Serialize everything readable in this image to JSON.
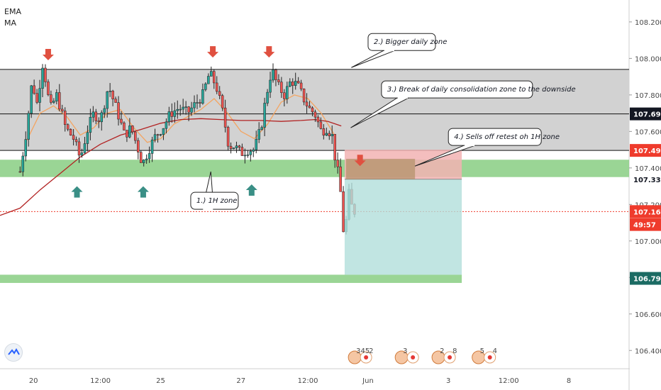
{
  "indicators": [
    "EMA",
    "MA"
  ],
  "colors": {
    "up": "#26a69a",
    "down": "#ef5350",
    "candle": "#222222",
    "zone_gray": "#d0d0d0",
    "zone_green": "#8fd08a",
    "arrow_red": "#e05040",
    "arrow_teal": "#3a8f86",
    "ema": "#f4a460",
    "ma": "#b22222",
    "stop_zone": "#f2b3b3",
    "target_zone": "#b2dfdb",
    "price_tag": "#ef3b2c",
    "black_tag": "#131722",
    "teal_tag": "#1b6b63"
  },
  "chart_data": {
    "type": "line",
    "subtype": "candlestick",
    "title": "",
    "xlabel": "",
    "ylabel": "",
    "ylim": [
      106.3,
      108.32
    ],
    "y_axis_ticks": [
      108.2,
      108.0,
      107.8,
      107.6,
      107.4,
      107.2,
      107.0,
      106.8,
      106.6,
      106.4
    ],
    "x_axis_ticks": [
      {
        "label": "20",
        "x": 2
      },
      {
        "label": "12:00",
        "x": 12
      },
      {
        "label": "25",
        "x": 21
      },
      {
        "label": "27",
        "x": 33
      },
      {
        "label": "12:00",
        "x": 43
      },
      {
        "label": "Jun",
        "x": 52
      },
      {
        "label": "3",
        "x": 64
      },
      {
        "label": "12:00",
        "x": 73
      },
      {
        "label": "8",
        "x": 82
      }
    ],
    "xlim": [
      -3,
      91
    ],
    "price_series": [
      [
        0,
        107.38
      ],
      [
        1,
        107.62
      ],
      [
        1.8,
        107.88
      ],
      [
        2.5,
        107.75
      ],
      [
        3.4,
        107.98
      ],
      [
        4.5,
        107.72
      ],
      [
        5.5,
        107.8
      ],
      [
        6.8,
        107.62
      ],
      [
        8,
        107.56
      ],
      [
        9,
        107.45
      ],
      [
        10,
        107.6
      ],
      [
        11,
        107.7
      ],
      [
        12,
        107.66
      ],
      [
        13.2,
        107.85
      ],
      [
        14.6,
        107.7
      ],
      [
        15.6,
        107.58
      ],
      [
        16.6,
        107.62
      ],
      [
        17.5,
        107.52
      ],
      [
        18.3,
        107.42
      ],
      [
        19.2,
        107.5
      ],
      [
        20.3,
        107.58
      ],
      [
        21.3,
        107.62
      ],
      [
        22.5,
        107.7
      ],
      [
        23.8,
        107.73
      ],
      [
        25,
        107.7
      ],
      [
        26.2,
        107.75
      ],
      [
        27.3,
        107.8
      ],
      [
        28.3,
        107.92
      ],
      [
        29.3,
        107.85
      ],
      [
        30.3,
        107.7
      ],
      [
        31.2,
        107.52
      ],
      [
        32,
        107.52
      ],
      [
        33,
        107.48
      ],
      [
        34,
        107.5
      ],
      [
        35,
        107.5
      ],
      [
        36,
        107.62
      ],
      [
        36.8,
        107.8
      ],
      [
        37.6,
        107.94
      ],
      [
        38.5,
        107.85
      ],
      [
        39.5,
        107.8
      ],
      [
        40.5,
        107.88
      ],
      [
        41.5,
        107.85
      ],
      [
        42.5,
        107.77
      ],
      [
        43.3,
        107.72
      ],
      [
        44,
        107.7
      ],
      [
        45,
        107.6
      ],
      [
        45.8,
        107.62
      ],
      [
        46.6,
        107.58
      ],
      [
        47.2,
        107.42
      ],
      [
        47.8,
        107.32
      ],
      [
        48.2,
        107.05
      ],
      [
        48.8,
        107.12
      ],
      [
        49.2,
        107.28
      ],
      [
        49.6,
        107.18
      ],
      [
        50,
        107.16
      ]
    ],
    "candle_prices": {
      "low": 107.33,
      "high": 107.96
    },
    "ema_series": [
      [
        1,
        107.55
      ],
      [
        3,
        107.7
      ],
      [
        5,
        107.74
      ],
      [
        7,
        107.68
      ],
      [
        9,
        107.58
      ],
      [
        11,
        107.62
      ],
      [
        13,
        107.7
      ],
      [
        15,
        107.72
      ],
      [
        17,
        107.62
      ],
      [
        19,
        107.54
      ],
      [
        21,
        107.56
      ],
      [
        23,
        107.64
      ],
      [
        25,
        107.68
      ],
      [
        27,
        107.72
      ],
      [
        29,
        107.78
      ],
      [
        31,
        107.7
      ],
      [
        33,
        107.6
      ],
      [
        35,
        107.56
      ],
      [
        37,
        107.64
      ],
      [
        39,
        107.76
      ],
      [
        41,
        107.8
      ],
      [
        43,
        107.78
      ],
      [
        45,
        107.7
      ],
      [
        47,
        107.58
      ]
    ],
    "ma_series": [
      [
        -3,
        107.14
      ],
      [
        0,
        107.18
      ],
      [
        3,
        107.28
      ],
      [
        6,
        107.37
      ],
      [
        9,
        107.46
      ],
      [
        12,
        107.53
      ],
      [
        15,
        107.58
      ],
      [
        18,
        107.61
      ],
      [
        21,
        107.645
      ],
      [
        24,
        107.665
      ],
      [
        27,
        107.67
      ],
      [
        30,
        107.665
      ],
      [
        33,
        107.66
      ],
      [
        36,
        107.66
      ],
      [
        39,
        107.655
      ],
      [
        42,
        107.66
      ],
      [
        44,
        107.665
      ],
      [
        46,
        107.655
      ],
      [
        48,
        107.63
      ]
    ],
    "zones": [
      {
        "name": "daily-zone",
        "y_low": 107.496,
        "y_high": 107.94,
        "x_from": -3,
        "x_to": 91
      },
      {
        "name": "1h-zone",
        "y_low": 107.35,
        "y_high": 107.445,
        "x_from": -3,
        "x_to": 91
      },
      {
        "name": "target-zone",
        "y_low": 106.77,
        "y_high": 106.815,
        "x_from": -3,
        "x_to": 66
      }
    ],
    "hlines": [
      107.94,
      107.696,
      107.496
    ],
    "position": {
      "entry": 107.338,
      "stop": 107.5,
      "target": 106.815,
      "x_from": 48.5,
      "x_to": 66
    },
    "current_price": 107.161,
    "price_tags": [
      {
        "value": "107.696",
        "price": 107.696,
        "style": "black"
      },
      {
        "value": "107.496",
        "price": 107.496,
        "style": "red"
      },
      {
        "value": "107.338",
        "price": 107.338,
        "style": "plain"
      },
      {
        "value": "107.161",
        "price": 107.161,
        "style": "red"
      },
      {
        "value": "49:57",
        "price": 107.09,
        "style": "red"
      },
      {
        "value": "106.795",
        "price": 106.795,
        "style": "teal"
      }
    ],
    "down_arrows": [
      [
        4.2,
        107.99
      ],
      [
        28.8,
        108.005
      ],
      [
        37.2,
        108.005
      ],
      [
        50.8,
        107.41
      ]
    ],
    "up_arrows": [
      [
        8.5,
        107.3
      ],
      [
        18.4,
        107.3
      ],
      [
        34.6,
        107.31
      ]
    ],
    "annotations": [
      {
        "text": "2.) Bigger daily zone",
        "box": [
          52,
          108.09
        ],
        "w": 95,
        "tip": [
          49.5,
          107.95
        ]
      },
      {
        "text": "3.) Break of daily consolidation zone to the downside",
        "box": [
          54,
          107.83
        ],
        "w": 213,
        "tip": [
          49.4,
          107.62
        ]
      },
      {
        "text": "4.) Sells off retest oh 1H zone",
        "box": [
          64,
          107.57
        ],
        "w": 131,
        "tip": [
          59,
          107.41
        ]
      },
      {
        "text": "1.) 1H zone",
        "box": [
          25.5,
          107.22
        ],
        "w": 67,
        "tip": [
          28.5,
          107.38
        ]
      }
    ],
    "events": [
      {
        "x": 50,
        "badge": "345",
        "badge2": "2"
      },
      {
        "x": 57,
        "badge": "3",
        "badge2": ""
      },
      {
        "x": 62.5,
        "badge": "2",
        "badge2": "8"
      },
      {
        "x": 68.5,
        "badge": "5",
        "badge2": "4"
      }
    ]
  }
}
